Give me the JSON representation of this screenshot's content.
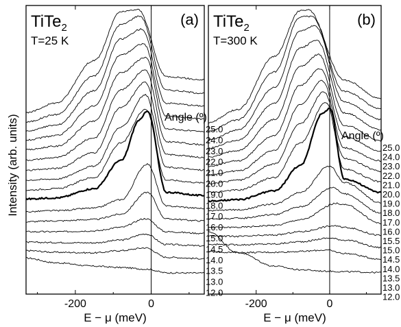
{
  "figure": {
    "ylabel": "Intensity (arb. units)",
    "xlabel": "E − μ (meV)"
  },
  "chart_data": [
    {
      "type": "line",
      "panel_label": "(a)",
      "sample": "TiTe",
      "sample_subscript": "2",
      "temperature": "T=25 K",
      "angle_heading": "Angle (º)",
      "xlabel": "E − μ (meV)",
      "ylabel": "Intensity (arb. units)",
      "xlim": [
        -330,
        140
      ],
      "xticks": [
        -200,
        0
      ],
      "fermi_level_line": 0,
      "ylim": [
        0,
        100
      ],
      "highlighted_angle": "16.0",
      "series": [
        {
          "name": "12.0",
          "x": [
            -330,
            -250,
            -150,
            -80,
            -10,
            40,
            140
          ],
          "y": [
            10.5,
            8.8,
            7.6,
            7.1,
            6.5,
            5.2,
            5.1
          ]
        },
        {
          "name": "13.0",
          "x": [
            -330,
            -250,
            -150,
            -80,
            -15,
            40,
            140
          ],
          "y": [
            13.2,
            12.6,
            12.4,
            13.2,
            14.2,
            10.8,
            10.3
          ]
        },
        {
          "name": "13.5",
          "x": [
            -330,
            -250,
            -150,
            -80,
            -15,
            40,
            140
          ],
          "y": [
            16.2,
            16.1,
            16.0,
            17.0,
            19.2,
            15.4,
            14.9
          ]
        },
        {
          "name": "14.0",
          "x": [
            -330,
            -250,
            -150,
            -80,
            -15,
            40,
            140
          ],
          "y": [
            20.0,
            20.0,
            20.3,
            21.6,
            24.7,
            20.0,
            19.4
          ]
        },
        {
          "name": "14.5",
          "x": [
            -330,
            -250,
            -150,
            -80,
            -10,
            40,
            140
          ],
          "y": [
            23.6,
            23.9,
            24.4,
            26.3,
            34.2,
            24.6,
            23.9
          ]
        },
        {
          "name": "15.0",
          "x": [
            -330,
            -250,
            -150,
            -80,
            -10,
            40,
            140
          ],
          "y": [
            27.2,
            27.6,
            28.5,
            31.5,
            44.4,
            29.2,
            28.4
          ]
        },
        {
          "name": "16.0",
          "x": [
            -330,
            -250,
            -150,
            -80,
            -30,
            -10,
            40,
            140
          ],
          "y": [
            31.8,
            32.2,
            35.5,
            45.6,
            60.3,
            63.6,
            34.2,
            33.0
          ]
        },
        {
          "name": "17.0",
          "x": [
            -330,
            -250,
            -150,
            -80,
            -15,
            40,
            140
          ],
          "y": [
            35.0,
            35.5,
            39.5,
            51.9,
            64.2,
            38.6,
            37.6
          ]
        },
        {
          "name": "18.0",
          "x": [
            -330,
            -250,
            -150,
            -80,
            -15,
            40,
            140
          ],
          "y": [
            38.6,
            39.0,
            43.6,
            57.6,
            69.3,
            43.2,
            42.2
          ]
        },
        {
          "name": "19.0",
          "x": [
            -330,
            -250,
            -150,
            -80,
            -15,
            40,
            140
          ],
          "y": [
            42.1,
            42.8,
            48.5,
            64.7,
            73.8,
            47.8,
            46.8
          ]
        },
        {
          "name": "20.0",
          "x": [
            -330,
            -250,
            -150,
            -80,
            -15,
            40,
            140
          ],
          "y": [
            45.8,
            46.7,
            53.8,
            71.1,
            78.3,
            52.4,
            51.4
          ]
        },
        {
          "name": "21.0",
          "x": [
            -330,
            -250,
            -150,
            -80,
            -15,
            40,
            140
          ],
          "y": [
            49.5,
            50.8,
            59.8,
            77.3,
            82.8,
            57.0,
            56.0
          ]
        },
        {
          "name": "22.0",
          "x": [
            -330,
            -250,
            -150,
            -80,
            -20,
            40,
            140
          ],
          "y": [
            53.0,
            54.6,
            65.3,
            83.7,
            87.7,
            61.6,
            60.6
          ]
        },
        {
          "name": "23.0",
          "x": [
            -330,
            -250,
            -150,
            -80,
            -25,
            40,
            140
          ],
          "y": [
            56.3,
            58.4,
            70.8,
            89.4,
            93.0,
            66.3,
            65.3
          ]
        },
        {
          "name": "24.0",
          "x": [
            -330,
            -250,
            -150,
            -80,
            -30,
            40,
            140
          ],
          "y": [
            59.5,
            62.2,
            76.2,
            94.6,
            97.7,
            71.0,
            69.9
          ]
        },
        {
          "name": "25.0",
          "x": [
            -330,
            -250,
            -150,
            -80,
            -35,
            40,
            140
          ],
          "y": [
            62.8,
            66.4,
            81.7,
            99.2,
            100.0,
            75.9,
            74.7
          ]
        }
      ]
    },
    {
      "type": "line",
      "panel_label": "(b)",
      "sample": "TiTe",
      "sample_subscript": "2",
      "temperature": "T=300 K",
      "angle_heading": "Angle (º)",
      "xlabel": "E − μ (meV)",
      "ylabel": "Intensity (arb. units)",
      "xlim": [
        -330,
        140
      ],
      "xticks": [
        -200,
        0
      ],
      "fermi_level_line": 0,
      "ylim": [
        0,
        100
      ],
      "highlighted_angle": "16.0",
      "series": [
        {
          "name": "12.0",
          "x": [
            -330,
            -250,
            -150,
            -80,
            -10,
            40,
            140
          ],
          "y": [
            20.0,
            12.5,
            7.6,
            6.3,
            5.8,
            5.6,
            5.3
          ]
        },
        {
          "name": "13.0",
          "x": [
            -330,
            -250,
            -150,
            -80,
            -10,
            40,
            140
          ],
          "y": [
            12.8,
            12.5,
            12.6,
            12.9,
            13.4,
            12.2,
            10.1
          ]
        },
        {
          "name": "13.5",
          "x": [
            -330,
            -250,
            -150,
            -80,
            0,
            40,
            140
          ],
          "y": [
            15.5,
            15.3,
            15.6,
            16.4,
            17.7,
            17.0,
            14.3
          ]
        },
        {
          "name": "14.0",
          "x": [
            -330,
            -250,
            -150,
            -80,
            10,
            40,
            140
          ],
          "y": [
            18.5,
            18.3,
            18.8,
            20.0,
            22.1,
            21.6,
            18.7
          ]
        },
        {
          "name": "14.5",
          "x": [
            -330,
            -250,
            -150,
            -80,
            20,
            40,
            140
          ],
          "y": [
            21.5,
            21.6,
            22.3,
            24.3,
            30.2,
            29.7,
            23.0
          ]
        },
        {
          "name": "15.0",
          "x": [
            -330,
            -250,
            -150,
            -80,
            10,
            40,
            140
          ],
          "y": [
            24.6,
            24.8,
            26.2,
            29.0,
            36.0,
            33.6,
            26.8
          ]
        },
        {
          "name": "15.5",
          "x": [
            -330,
            -250,
            -150,
            -80,
            0,
            40,
            140
          ],
          "y": [
            27.6,
            27.9,
            30.0,
            34.2,
            43.7,
            37.7,
            30.4
          ]
        },
        {
          "name": "16.0",
          "x": [
            -330,
            -250,
            -150,
            -80,
            -20,
            0,
            40,
            140
          ],
          "y": [
            31.0,
            31.5,
            34.7,
            43.8,
            62.5,
            64.5,
            39.0,
            34.2
          ]
        },
        {
          "name": "17.0",
          "x": [
            -330,
            -250,
            -150,
            -80,
            -10,
            40,
            140
          ],
          "y": [
            34.2,
            35.0,
            39.5,
            51.9,
            66.6,
            42.5,
            38.0
          ]
        },
        {
          "name": "18.0",
          "x": [
            -330,
            -250,
            -150,
            -80,
            -15,
            40,
            140
          ],
          "y": [
            37.3,
            38.5,
            44.4,
            58.9,
            70.4,
            46.4,
            41.8
          ]
        },
        {
          "name": "19.0",
          "x": [
            -330,
            -250,
            -150,
            -80,
            -20,
            40,
            140
          ],
          "y": [
            40.5,
            41.9,
            49.3,
            65.7,
            74.4,
            50.2,
            45.5
          ]
        },
        {
          "name": "20.0",
          "x": [
            -330,
            -250,
            -150,
            -80,
            -25,
            40,
            140
          ],
          "y": [
            43.6,
            45.5,
            54.7,
            72.7,
            78.7,
            54.1,
            49.1
          ]
        },
        {
          "name": "21.0",
          "x": [
            -330,
            -250,
            -150,
            -80,
            -30,
            40,
            140
          ],
          "y": [
            46.8,
            49.3,
            60.4,
            79.5,
            83.8,
            58.3,
            52.8
          ]
        },
        {
          "name": "22.0",
          "x": [
            -330,
            -250,
            -150,
            -80,
            -35,
            40,
            140
          ],
          "y": [
            50.1,
            53.0,
            66.2,
            86.2,
            89.0,
            62.8,
            56.8
          ]
        },
        {
          "name": "23.0",
          "x": [
            -330,
            -250,
            -150,
            -80,
            -40,
            40,
            140
          ],
          "y": [
            53.1,
            56.6,
            71.9,
            92.4,
            94.1,
            66.7,
            60.4
          ]
        },
        {
          "name": "24.0",
          "x": [
            -330,
            -250,
            -150,
            -80,
            -50,
            40,
            140
          ],
          "y": [
            56.2,
            60.3,
            77.5,
            97.3,
            97.6,
            70.5,
            64.3
          ]
        },
        {
          "name": "25.0",
          "x": [
            -330,
            -250,
            -150,
            -80,
            -60,
            40,
            140
          ],
          "y": [
            59.3,
            64.0,
            83.2,
            99.6,
            100.0,
            74.6,
            67.9
          ]
        }
      ]
    }
  ]
}
